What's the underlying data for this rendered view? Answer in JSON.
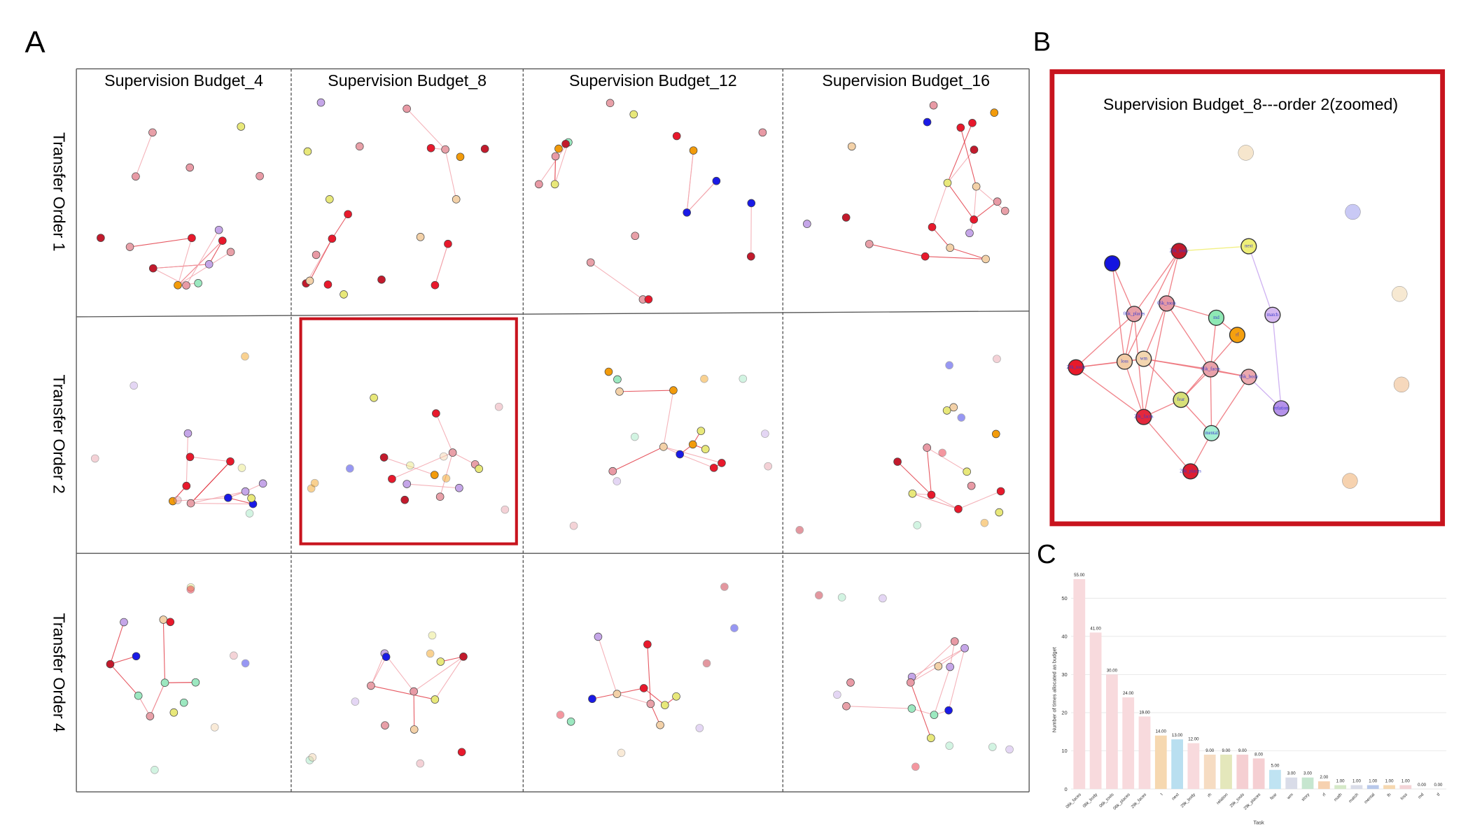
{
  "panels": {
    "a": "A",
    "b": "B",
    "c": "C"
  },
  "grid": {
    "columns": [
      "Supervision Budget_4",
      "Supervision Budget_8",
      "Supervision Budget_12",
      "Supervision Budget_16"
    ],
    "rows": [
      "Transfer Order 1",
      "Transfer Order 2",
      "Transfer Order 4"
    ]
  },
  "zoom": {
    "title": "Supervision Budget_8---order 2(zoomed)",
    "nodes": [
      {
        "color": "#f3dcb8"
      },
      {
        "color": "#b3b3f2"
      },
      {
        "label": "next",
        "color": "#eeee78"
      },
      {
        "label": "29k_body",
        "color": "#c21a2c"
      },
      {
        "color": "#1414e0"
      },
      {
        "color": "#f5e0c0"
      },
      {
        "label": "06k_tools",
        "color": "#e79aa4"
      },
      {
        "label": "06k_places",
        "color": "#e7a0a8"
      },
      {
        "label": "md",
        "color": "#8ee8b4"
      },
      {
        "label": "match",
        "color": "#d5b8f0"
      },
      {
        "label": "rf",
        "color": "#f5a00e"
      },
      {
        "label": "29k_tools",
        "color": "#e81a2a"
      },
      {
        "label": "loss",
        "color": "#f3cca6"
      },
      {
        "label": "wm",
        "color": "#f3d6b0"
      },
      {
        "label": "06k_faces",
        "color": "#e9a1a9"
      },
      {
        "label": "06k_body",
        "color": "#eca9ae"
      },
      {
        "color": "#f3c8a0"
      },
      {
        "label": "relation",
        "color": "#b592ea"
      },
      {
        "label": "fear",
        "color": "#d8e078"
      },
      {
        "label": "29k_faces",
        "color": "#e4283c"
      },
      {
        "label": "mental",
        "color": "#a6f0d4"
      },
      {
        "label": "29k_places",
        "color": "#de1e30"
      },
      {
        "color": "#f3bf8e"
      }
    ]
  },
  "chart_data": {
    "type": "bar",
    "ylabel": "Number of times allocated as budget",
    "xlabel": "Task",
    "categories": [
      "06k_faces",
      "06k_body",
      "06k_tools",
      "06k_places",
      "29k_faces",
      "t",
      "next",
      "29k_body",
      "rh",
      "relation",
      "29k_tools",
      "29k_places",
      "fear",
      "wm",
      "story",
      "rf",
      "math",
      "match",
      "mental",
      "lh",
      "loss",
      "md",
      "tf"
    ],
    "values": [
      55,
      41,
      30,
      24,
      19,
      14,
      13,
      12,
      9,
      9,
      9,
      8,
      5,
      3,
      3,
      2,
      1,
      1,
      1,
      1,
      1,
      0,
      0
    ],
    "value_labels": [
      "55.00",
      "41.00",
      "30.00",
      "24.00",
      "19.00",
      "14.00",
      "13.00",
      "12.00",
      "9.00",
      "9.00",
      "9.00",
      "8.00",
      "5.00",
      "3.00",
      "3.00",
      "2.00",
      "1.00",
      "1.00",
      "1.00",
      "1.00",
      "1.00",
      "0.00",
      "0.00"
    ],
    "colors": [
      "#f8dadd",
      "#f8dadd",
      "#f8dadd",
      "#f8dadd",
      "#f8dadd",
      "#f6d8b0",
      "#b9dff0",
      "#f8dadd",
      "#f6dcc2",
      "#e4e7bb",
      "#f5cfd2",
      "#f5cfd2",
      "#bfe3f2",
      "#d9dce8",
      "#c6e6cf",
      "#f6d1b0",
      "#d5e9c8",
      "#d9dce8",
      "#b8c8ea",
      "#f6d8b0",
      "#f3d3d6",
      "#d9dce8",
      "#f6d8b0"
    ],
    "ylim": [
      0,
      57
    ],
    "yticks": [
      0,
      10,
      20,
      30,
      40,
      50
    ],
    "grid": true
  }
}
